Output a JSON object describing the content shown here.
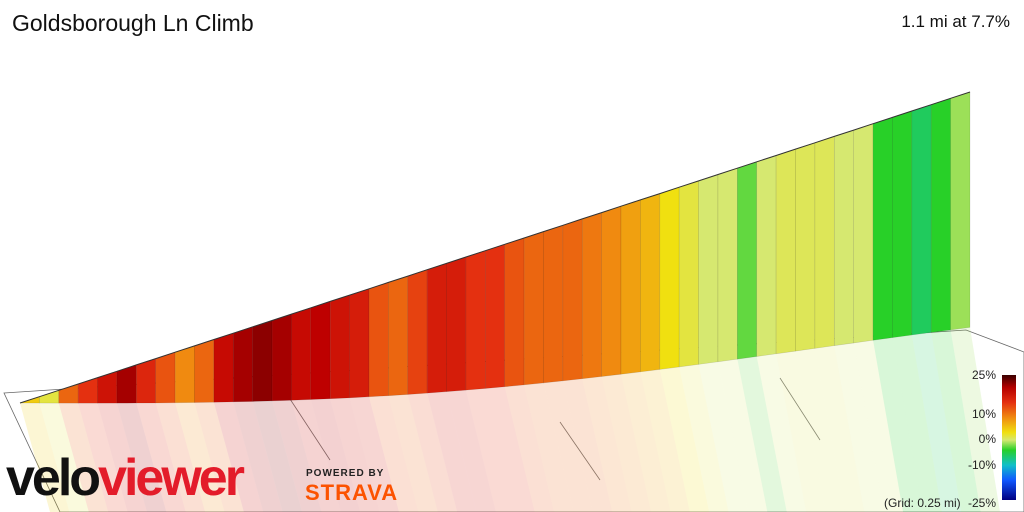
{
  "title": "Goldsborough Ln Climb",
  "summary": "1.1 mi at 7.7%",
  "brand": {
    "part1": "velo",
    "part2": "viewer",
    "powered_by": "POWERED BY",
    "strava": "STRAVA"
  },
  "legend": {
    "ticks": [
      "25%",
      "10%",
      "0%",
      "-10%",
      "-25%"
    ],
    "grid_note": "(Grid: 0.25 mi)"
  },
  "chart_data": {
    "type": "area",
    "title": "Goldsborough Ln Climb",
    "xlabel": "",
    "ylabel": "",
    "grid": true,
    "x_unit": "mi",
    "grade_scale": [
      -25,
      25
    ],
    "grid_spacing": 0.25,
    "segments": [
      {
        "grade": 8
      },
      {
        "grade": 5
      },
      {
        "grade": 13
      },
      {
        "grade": 16
      },
      {
        "grade": 19
      },
      {
        "grade": 22
      },
      {
        "grade": 17
      },
      {
        "grade": 14
      },
      {
        "grade": 11
      },
      {
        "grade": 13
      },
      {
        "grade": 20
      },
      {
        "grade": 22
      },
      {
        "grade": 23
      },
      {
        "grade": 22
      },
      {
        "grade": 20
      },
      {
        "grade": 21
      },
      {
        "grade": 19
      },
      {
        "grade": 18
      },
      {
        "grade": 14
      },
      {
        "grade": 13
      },
      {
        "grade": 15
      },
      {
        "grade": 18
      },
      {
        "grade": 18
      },
      {
        "grade": 16
      },
      {
        "grade": 16
      },
      {
        "grade": 14
      },
      {
        "grade": 13
      },
      {
        "grade": 13
      },
      {
        "grade": 13
      },
      {
        "grade": 12
      },
      {
        "grade": 11
      },
      {
        "grade": 10
      },
      {
        "grade": 9
      },
      {
        "grade": 7
      },
      {
        "grade": 5
      },
      {
        "grade": 3
      },
      {
        "grade": 3
      },
      {
        "grade": 1
      },
      {
        "grade": 3
      },
      {
        "grade": 4
      },
      {
        "grade": 4
      },
      {
        "grade": 4
      },
      {
        "grade": 3
      },
      {
        "grade": 3
      },
      {
        "grade": 0
      },
      {
        "grade": 0
      },
      {
        "grade": -1
      },
      {
        "grade": 0
      },
      {
        "grade": 2
      }
    ]
  }
}
